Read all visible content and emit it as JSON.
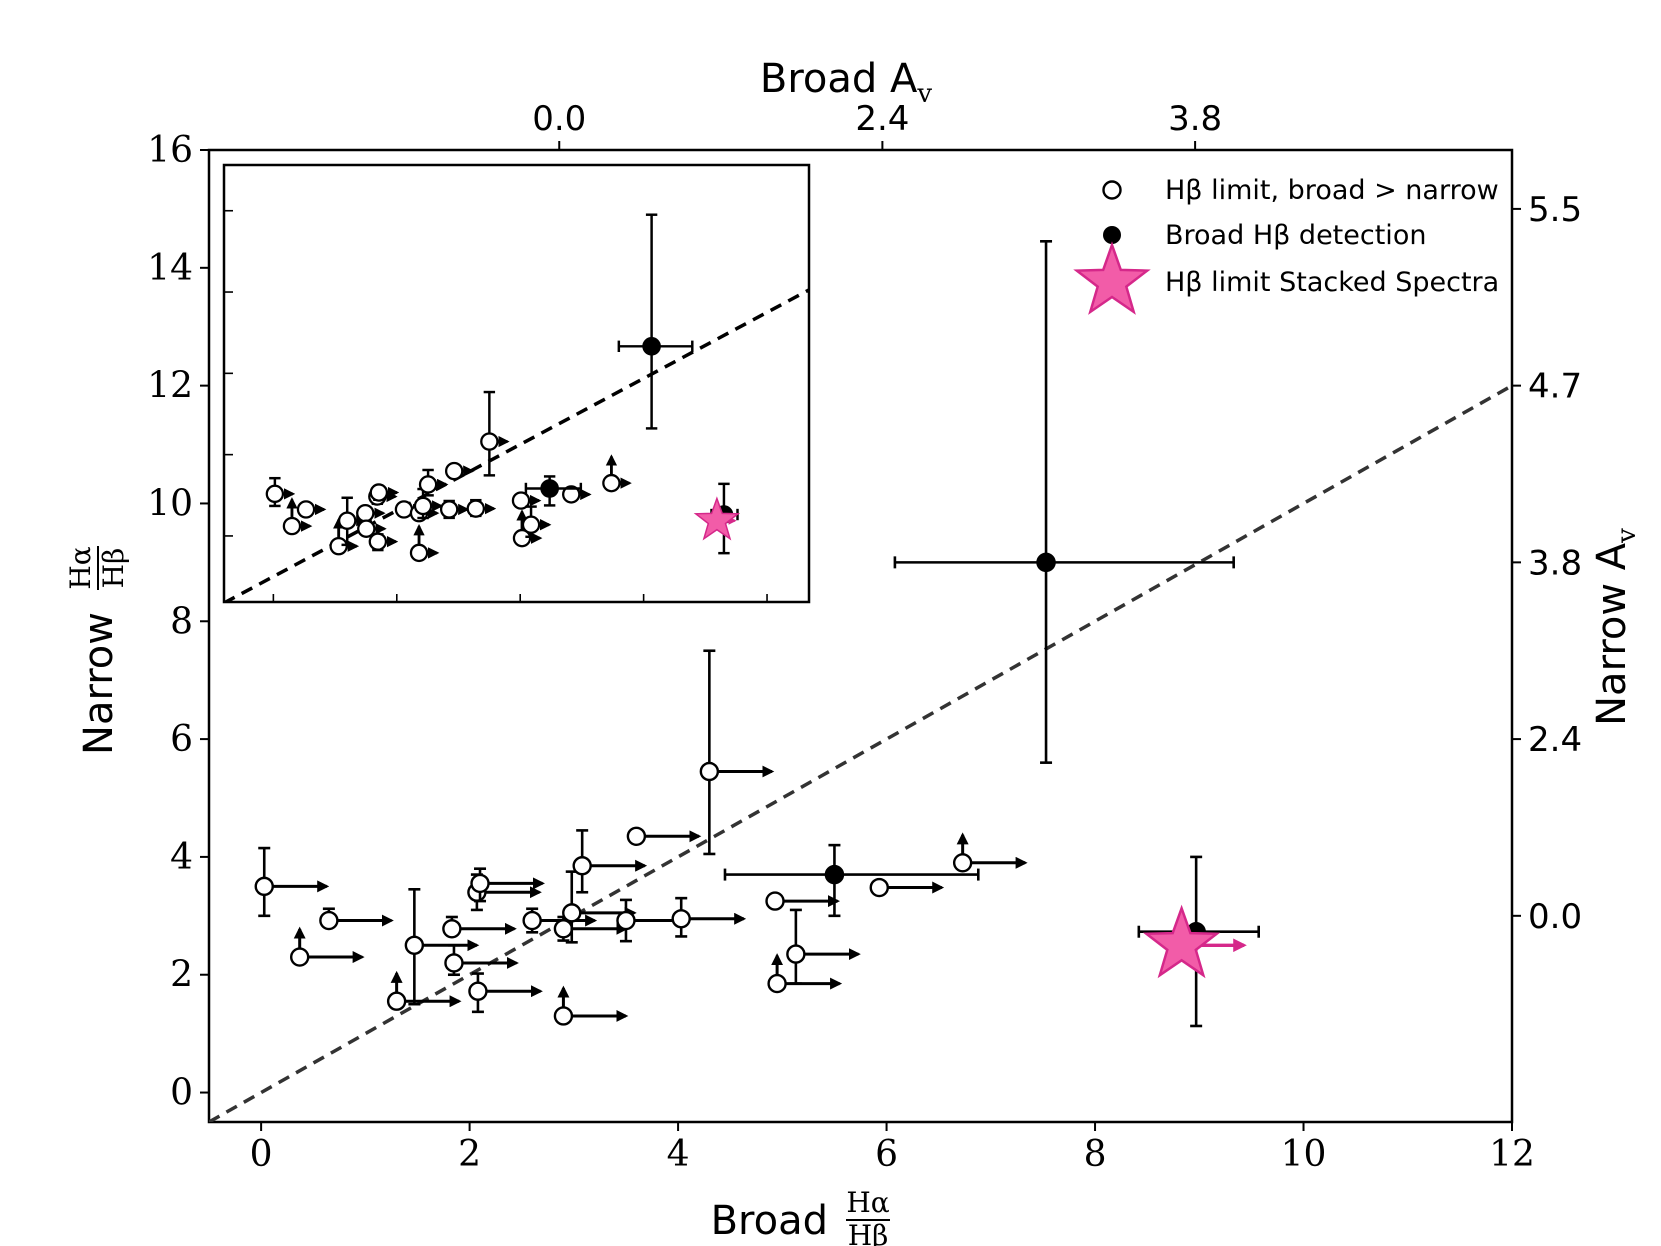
{
  "chart_data": {
    "type": "scatter",
    "x_label_prefix": "Broad",
    "y_label_prefix": "Narrow",
    "ratio_num": "Hα",
    "ratio_den": "Hβ",
    "top_axis_label": "Broad A_v",
    "right_axis_label": "Narrow A_v",
    "xlim": [
      -0.5,
      12
    ],
    "ylim": [
      -0.5,
      16
    ],
    "xticks": [
      0,
      2,
      4,
      6,
      8,
      10,
      12
    ],
    "yticks": [
      0,
      2,
      4,
      6,
      8,
      10,
      12,
      14,
      16
    ],
    "top_ticks": [
      {
        "ratio": 2.86,
        "label": "0.0"
      },
      {
        "ratio": 5.96,
        "label": "2.4"
      },
      {
        "ratio": 8.96,
        "label": "3.8"
      }
    ],
    "right_ticks": [
      {
        "ratio": 3.0,
        "label": "0.0"
      },
      {
        "ratio": 6.0,
        "label": "2.4"
      },
      {
        "ratio": 9.0,
        "label": "3.8"
      },
      {
        "ratio": 12.0,
        "label": "4.7"
      },
      {
        "ratio": 15.0,
        "label": "5.5"
      }
    ],
    "one_to_one_line": {
      "slope": 1,
      "intercept": 0
    },
    "legend": [
      {
        "marker": "open-circle",
        "label": "Hβ limit, broad > narrow"
      },
      {
        "marker": "filled-circle",
        "label": "Broad Hβ detection"
      },
      {
        "marker": "star",
        "label": "Hβ limit Stacked Spectra"
      }
    ],
    "series": [
      {
        "name": "Hβ limit, broad > narrow",
        "marker": "open-circle",
        "points": [
          {
            "x": 0.03,
            "y": 3.5,
            "yerr": [
              0.5,
              0.65
            ],
            "xlimit": 0.6
          },
          {
            "x": 0.37,
            "y": 2.3,
            "uplim": true,
            "xlimit": 0.6
          },
          {
            "x": 0.65,
            "y": 2.92,
            "yerr": [
              0.1,
              0.2
            ],
            "xlimit": 0.6
          },
          {
            "x": 1.3,
            "y": 1.55,
            "uplim": true,
            "xlimit": 0.6
          },
          {
            "x": 1.47,
            "y": 2.5,
            "yerr": [
              1.0,
              0.95
            ],
            "xlimit": 0.6
          },
          {
            "x": 1.83,
            "y": 2.78,
            "yerr": [
              0.1,
              0.2
            ],
            "xlimit": 0.6
          },
          {
            "x": 1.85,
            "y": 2.2,
            "yerr": [
              0.2,
              0.3
            ],
            "xlimit": 0.6
          },
          {
            "x": 2.07,
            "y": 3.4,
            "yerr": [
              0.3,
              0.3
            ],
            "xlimit": 0.6
          },
          {
            "x": 2.1,
            "y": 3.55,
            "yerr": [
              0.3,
              0.25
            ],
            "xlimit": 0.6
          },
          {
            "x": 2.08,
            "y": 1.72,
            "yerr": [
              0.35,
              0.3
            ],
            "xlimit": 0.6
          },
          {
            "x": 2.6,
            "y": 2.92,
            "yerr": [
              0.2,
              0.2
            ],
            "xlimit": 0.6
          },
          {
            "x": 2.9,
            "y": 2.78,
            "yerr": [
              0.2,
              0.2
            ],
            "xlimit": 0.6
          },
          {
            "x": 2.9,
            "y": 1.3,
            "uplim": true,
            "xlimit": 0.6
          },
          {
            "x": 2.98,
            "y": 3.05,
            "yerr": [
              0.5,
              0.7
            ],
            "xlimit": 0.6
          },
          {
            "x": 3.08,
            "y": 3.85,
            "yerr": [
              0.45,
              0.6
            ],
            "xlimit": 0.6
          },
          {
            "x": 3.5,
            "y": 2.92,
            "yerr": [
              0.35,
              0.35
            ],
            "xlimit": 0.6
          },
          {
            "x": 3.6,
            "y": 4.35,
            "xlimit": 0.6
          },
          {
            "x": 4.03,
            "y": 2.95,
            "yerr": [
              0.3,
              0.35
            ],
            "xlimit": 0.6
          },
          {
            "x": 4.3,
            "y": 5.45,
            "yerr": [
              1.4,
              2.05
            ],
            "xlimit": 0.6
          },
          {
            "x": 4.93,
            "y": 3.25,
            "xlimit": 0.6
          },
          {
            "x": 4.95,
            "y": 1.85,
            "uplim": true,
            "xlimit": 0.6
          },
          {
            "x": 5.13,
            "y": 2.35,
            "yerr": [
              0.5,
              0.75
            ],
            "xlimit": 0.6
          },
          {
            "x": 5.93,
            "y": 3.48,
            "xlimit": 0.6
          },
          {
            "x": 6.73,
            "y": 3.9,
            "uplim": true,
            "xlimit": 0.6
          }
        ]
      },
      {
        "name": "Broad Hβ detection",
        "marker": "filled-circle",
        "points": [
          {
            "x": 5.5,
            "y": 3.7,
            "xerr": [
              1.05,
              1.38
            ],
            "yerr": [
              0.7,
              0.5
            ]
          },
          {
            "x": 7.53,
            "y": 9.0,
            "xerr": [
              1.45,
              1.8
            ],
            "yerr": [
              3.4,
              5.45
            ]
          },
          {
            "x": 8.97,
            "y": 2.73,
            "xerr": [
              0.55,
              0.6
            ],
            "yerr": [
              1.6,
              1.27
            ]
          }
        ]
      },
      {
        "name": "Hβ limit Stacked Spectra",
        "marker": "star",
        "points": [
          {
            "x": 8.83,
            "y": 2.5,
            "xlimit": 0.6
          }
        ]
      }
    ],
    "inset": {
      "xlim": [
        -0.2,
        2.17
      ],
      "ylim": [
        0.3,
        4.6
      ],
      "yticks": [
        0.95,
        1.75,
        2.55,
        3.35,
        4.15
      ],
      "xticks": [
        0,
        0.5,
        1.0,
        1.5,
        2.0
      ],
      "note": "magnified view of the low-ratio cluster"
    }
  }
}
